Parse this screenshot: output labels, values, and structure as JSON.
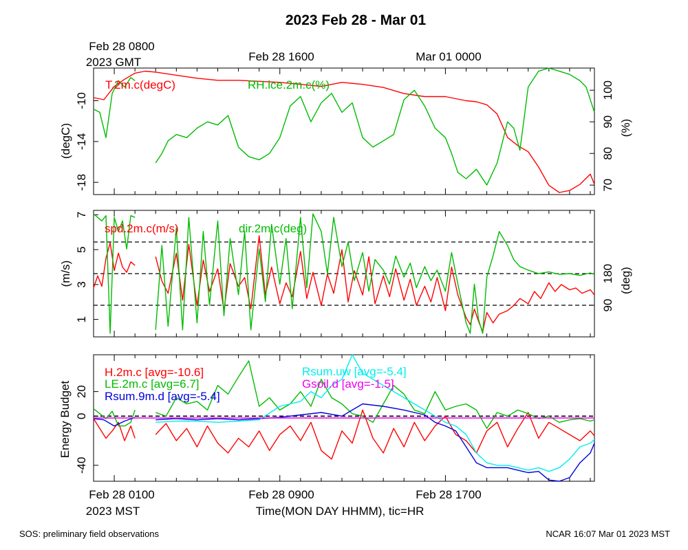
{
  "title": "2023 Feb 28 - Mar 01",
  "top_gmt_labels": {
    "first_line1": "Feb 28 0800",
    "first_line2": "2023 GMT",
    "second": "Feb 28 1600",
    "third": "Mar 01 0000"
  },
  "bottom_mst_labels": {
    "first_line1": "Feb 28 0100",
    "first_line2": "2023 MST",
    "second": "Feb 28 0900",
    "third": "Feb 28 1700"
  },
  "xlabel": "Time(MON DAY HHMM), tic=HR",
  "footer_left": "SOS: preliminary field observations",
  "footer_right": "NCAR 16:07 Mar 01 2023 MST",
  "colors": {
    "red": "#ff0000",
    "green": "#00bb00",
    "blue": "#0000dd",
    "cyan": "#00eeee",
    "magenta": "#ee00ee"
  },
  "chart_data": [
    {
      "type": "line",
      "panel": "temperature-rh",
      "x_unit": "hours since Feb 28 0000 MST",
      "xlim": [
        0.0,
        24.2
      ],
      "ylabel_left": "(degC)",
      "ylabel_right": "(%)",
      "ylim_left": [
        -19.2,
        -6.8
      ],
      "ylim_right": [
        67,
        107
      ],
      "yticks_left": [
        -18,
        -14,
        -10
      ],
      "yticks_right": [
        70,
        80,
        90,
        100
      ],
      "series": [
        {
          "name": "T.2m.c(degC)",
          "color": "#ff0000",
          "axis": "left",
          "x": [
            0,
            0.5,
            1.0,
            1.5,
            2.0,
            2.5,
            3,
            4,
            5,
            6,
            7,
            8,
            9,
            10,
            11,
            12,
            13,
            14,
            15,
            16,
            17,
            17.5,
            18,
            18.5,
            19,
            19.5,
            20,
            20.5,
            21,
            21.5,
            22,
            22.5,
            23,
            23.5,
            24,
            24.2
          ],
          "values": [
            -9.7,
            -9.9,
            -8.6,
            -7.9,
            -7.3,
            -7.1,
            -7.2,
            -7.5,
            -7.8,
            -8.0,
            -8.0,
            -8.1,
            -8.2,
            -8.4,
            -8.6,
            -8.2,
            -8.4,
            -8.7,
            -9.3,
            -9.6,
            -9.6,
            -9.8,
            -10.0,
            -10.1,
            -10.4,
            -11.3,
            -13.6,
            -14.4,
            -15.0,
            -16.5,
            -18.3,
            -19.0,
            -18.8,
            -18.2,
            -17.2,
            -18.2
          ]
        },
        {
          "name": "RH.ice.2m.c(%)",
          "color": "#00bb00",
          "axis": "right",
          "x": [
            0,
            0.3,
            0.6,
            0.9,
            1.2,
            1.5,
            1.8,
            2.0,
            null,
            3.0,
            3.3,
            3.6,
            4.0,
            4.5,
            5.0,
            5.5,
            6.0,
            6.5,
            7.0,
            7.5,
            8.0,
            8.5,
            9.0,
            9.5,
            10.0,
            10.5,
            11.0,
            11.5,
            12.0,
            12.5,
            13.0,
            13.5,
            14.0,
            14.5,
            15.0,
            15.5,
            16.0,
            16.5,
            17.0,
            17.3,
            17.6,
            18.0,
            18.5,
            19.0,
            19.5,
            20.0,
            20.3,
            20.6,
            21.0,
            21.5,
            22.0,
            22.5,
            23.0,
            23.5,
            23.8,
            24.2
          ],
          "values": [
            94,
            93,
            85,
            99,
            103,
            101,
            104,
            103,
            null,
            77,
            80,
            84,
            86,
            85,
            88,
            90,
            89,
            92,
            82,
            79,
            78,
            80,
            85,
            95,
            98,
            90,
            96,
            99,
            93,
            96,
            85,
            82,
            84,
            86,
            97,
            100,
            95,
            88,
            85,
            80,
            74,
            72,
            75,
            70,
            77,
            90,
            88,
            81,
            101,
            106,
            107,
            106,
            105,
            103,
            101,
            93
          ]
        }
      ]
    },
    {
      "type": "line",
      "panel": "wind",
      "x_unit": "hours since Feb 28 0000 MST",
      "xlim": [
        0.0,
        24.2
      ],
      "ylabel_left": "(m/s)",
      "ylabel_right": "(deg)",
      "ylim_left": [
        0,
        7.25
      ],
      "ylim_right": [
        0,
        360
      ],
      "yticks_left": [
        1,
        3,
        5,
        7
      ],
      "yticks_right": [
        90,
        180
      ],
      "reference_lines_deg": [
        90,
        180,
        270
      ],
      "series": [
        {
          "name": "spd.2m.c(m/s)",
          "color": "#ff0000",
          "axis": "left",
          "x": [
            0,
            0.2,
            0.4,
            0.6,
            0.8,
            1.0,
            1.2,
            1.4,
            1.6,
            1.8,
            2.0,
            null,
            3.0,
            3.3,
            3.6,
            4.0,
            4.3,
            4.6,
            5.0,
            5.3,
            5.6,
            6.0,
            6.3,
            6.6,
            7.0,
            7.3,
            7.6,
            8.0,
            8.3,
            8.6,
            9.0,
            9.3,
            9.6,
            10.0,
            10.3,
            10.6,
            11.0,
            11.3,
            11.6,
            12.0,
            12.3,
            12.6,
            13.0,
            13.3,
            13.6,
            14.0,
            14.3,
            14.6,
            15.0,
            15.3,
            15.6,
            16.0,
            16.3,
            16.6,
            17.0,
            17.3,
            17.6,
            18.0,
            18.2,
            18.4,
            18.6,
            18.8,
            19.0,
            19.3,
            19.6,
            20.0,
            20.3,
            20.6,
            21.0,
            21.3,
            21.6,
            22.0,
            22.3,
            22.6,
            23.0,
            23.3,
            23.6,
            24.0,
            24.2
          ],
          "values": [
            2.8,
            3.5,
            2.9,
            4.5,
            5.4,
            3.8,
            4.8,
            4.0,
            3.7,
            4.3,
            4.1,
            null,
            4.6,
            3.2,
            2.5,
            4.8,
            2.1,
            5.3,
            1.8,
            4.4,
            2.6,
            3.9,
            1.5,
            4.2,
            2.9,
            3.4,
            1.6,
            5.8,
            2.4,
            4.0,
            1.9,
            3.1,
            2.3,
            4.9,
            2.2,
            3.7,
            1.8,
            3.6,
            2.5,
            5.0,
            2.0,
            3.8,
            2.4,
            4.6,
            1.9,
            3.5,
            2.3,
            3.9,
            2.1,
            3.3,
            1.8,
            2.9,
            2.0,
            3.4,
            1.5,
            4.0,
            2.4,
            1.1,
            0.7,
            1.6,
            0.9,
            0.3,
            1.4,
            0.8,
            1.3,
            1.5,
            1.8,
            2.2,
            1.9,
            2.6,
            2.2,
            3.1,
            2.6,
            3.0,
            2.7,
            2.8,
            2.5,
            2.7,
            2.4
          ]
        },
        {
          "name": "dir.2m.c(deg)",
          "color": "#00bb00",
          "axis": "right",
          "x": [
            0,
            0.2,
            0.4,
            0.6,
            0.8,
            1.0,
            1.2,
            1.4,
            1.6,
            1.8,
            2.0,
            null,
            3.0,
            3.3,
            3.6,
            4.0,
            4.3,
            4.6,
            5.0,
            5.3,
            5.6,
            6.0,
            6.3,
            6.6,
            7.0,
            7.3,
            7.6,
            8.0,
            8.3,
            8.6,
            9.0,
            9.3,
            9.6,
            10.0,
            10.3,
            10.6,
            11.0,
            11.3,
            11.6,
            12.0,
            12.3,
            12.6,
            13.0,
            13.3,
            13.6,
            14.0,
            14.3,
            14.6,
            15.0,
            15.3,
            15.6,
            16.0,
            16.3,
            16.6,
            17.0,
            17.3,
            17.6,
            18.0,
            18.2,
            18.4,
            18.6,
            18.8,
            19.0,
            19.3,
            19.6,
            20.0,
            20.3,
            20.6,
            21.0,
            21.5,
            22.0,
            22.5,
            23.0,
            23.5,
            24.0,
            24.2
          ],
          "values": [
            350,
            340,
            330,
            345,
            10,
            340,
            300,
            330,
            250,
            345,
            340,
            null,
            20,
            260,
            30,
            310,
            20,
            340,
            40,
            300,
            90,
            330,
            60,
            280,
            120,
            300,
            20,
            250,
            100,
            320,
            150,
            280,
            80,
            340,
            140,
            350,
            300,
            180,
            340,
            200,
            270,
            160,
            240,
            130,
            220,
            190,
            150,
            230,
            170,
            210,
            140,
            200,
            160,
            190,
            130,
            240,
            150,
            40,
            10,
            150,
            50,
            10,
            170,
            230,
            300,
            260,
            220,
            200,
            190,
            180,
            185,
            178,
            180,
            175,
            182,
            178
          ]
        }
      ]
    },
    {
      "type": "line",
      "panel": "energy-budget",
      "x_unit": "hours since Feb 28 0000 MST",
      "xlim": [
        0.0,
        24.2
      ],
      "ylabel_left": "Energy Budget",
      "ylim_left": [
        -53,
        50
      ],
      "yticks_left": [
        -40,
        0,
        20
      ],
      "reference_lines": [
        0
      ],
      "series": [
        {
          "name": "H.2m.c",
          "legend": "H.2m.c [avg=-10.6]",
          "color": "#ff0000",
          "x": [
            0,
            0.3,
            0.6,
            0.9,
            1.2,
            1.5,
            1.8,
            2.0,
            null,
            3.0,
            3.5,
            4.0,
            4.5,
            5.0,
            5.5,
            6.0,
            6.5,
            7.0,
            7.5,
            8.0,
            8.5,
            9.0,
            9.5,
            10.0,
            10.5,
            11.0,
            11.5,
            12.0,
            12.5,
            13.0,
            13.5,
            14.0,
            14.5,
            15.0,
            15.5,
            16.0,
            16.5,
            17.0,
            17.5,
            18.0,
            18.5,
            19.0,
            19.5,
            20.0,
            20.5,
            21.0,
            21.5,
            22.0,
            22.5,
            23.0,
            23.5,
            24.0,
            24.2
          ],
          "values": [
            -2,
            -10,
            -18,
            -12,
            -5,
            -20,
            -8,
            -18,
            null,
            -15,
            -6,
            -20,
            -10,
            -25,
            -8,
            -22,
            -30,
            -18,
            -25,
            -12,
            -28,
            -15,
            -8,
            -20,
            -5,
            -28,
            -35,
            -12,
            -22,
            5,
            -18,
            -30,
            -10,
            -25,
            -5,
            -20,
            -8,
            0,
            -15,
            -20,
            -30,
            -12,
            -5,
            -25,
            -10,
            3,
            -18,
            -5,
            -10,
            -15,
            -20,
            -12,
            -16
          ]
        },
        {
          "name": "LE.2m.c",
          "legend": "LE.2m.c [avg=6.7]",
          "color": "#00bb00",
          "x": [
            0,
            0.3,
            0.6,
            0.9,
            1.2,
            1.5,
            1.8,
            2.0,
            null,
            3.0,
            3.5,
            4.0,
            4.5,
            5.0,
            5.5,
            6.0,
            6.5,
            7.0,
            7.5,
            8.0,
            8.5,
            9.0,
            9.5,
            10.0,
            10.5,
            11.0,
            11.5,
            12.0,
            12.5,
            13.0,
            13.5,
            14.0,
            14.5,
            15.0,
            15.5,
            16.0,
            16.5,
            17.0,
            17.5,
            18.0,
            18.5,
            19.0,
            19.5,
            20.0,
            20.5,
            21.0,
            21.5,
            22.0,
            22.5,
            23.0,
            23.5,
            24.0,
            24.2
          ],
          "values": [
            6,
            2,
            -2,
            4,
            -8,
            -8,
            -5,
            5,
            null,
            3,
            0,
            15,
            10,
            12,
            5,
            25,
            18,
            32,
            45,
            8,
            15,
            5,
            10,
            20,
            8,
            30,
            15,
            10,
            2,
            0,
            -5,
            10,
            25,
            18,
            5,
            2,
            20,
            5,
            8,
            10,
            5,
            -10,
            3,
            0,
            5,
            2,
            -2,
            0,
            -5,
            -3,
            -2,
            -4,
            -3
          ]
        },
        {
          "name": "Rsum.9m.d",
          "legend": "Rsum.9m.d [avg=-5.4]",
          "color": "#0000dd",
          "x": [
            0,
            0.5,
            1.0,
            1.5,
            2.0,
            null,
            3.0,
            4.0,
            5.0,
            6.0,
            7.0,
            8.0,
            9.0,
            10.0,
            11.0,
            12.0,
            12.5,
            13.0,
            14.0,
            15.0,
            16.0,
            16.5,
            17.0,
            17.5,
            18.0,
            18.5,
            19.0,
            19.5,
            20.0,
            20.5,
            21.0,
            21.5,
            22.0,
            22.5,
            23.0,
            23.5,
            24.0,
            24.2
          ],
          "values": [
            -2,
            -3,
            -8,
            -4,
            -1,
            null,
            -3,
            -2,
            -3,
            -2,
            -3,
            -2,
            -1,
            1,
            3,
            0,
            5,
            10,
            8,
            5,
            1,
            -5,
            -8,
            -12,
            -25,
            -38,
            -42,
            -42,
            -42,
            -44,
            -46,
            -45,
            -52,
            -55,
            -50,
            -38,
            -30,
            -22
          ]
        },
        {
          "name": "Rsum.uw",
          "legend": "Rsum.uw [avg=-5.4]",
          "color": "#00eeee",
          "x": [
            3.0,
            4.0,
            5.0,
            6.0,
            7.0,
            8.0,
            9.0,
            10.0,
            10.5,
            11.0,
            11.5,
            12.0,
            12.5,
            13.0,
            14.0,
            15.0,
            16.0,
            16.5,
            17.0,
            17.5,
            18.0,
            18.5,
            19.0,
            19.5,
            20.0,
            20.5,
            21.0,
            21.5,
            22.0,
            22.5,
            23.0,
            23.5,
            24.0,
            24.2
          ],
          "values": [
            -5,
            -4,
            -4,
            -5,
            -4,
            -3,
            8,
            12,
            20,
            15,
            25,
            30,
            50,
            35,
            25,
            15,
            5,
            0,
            -5,
            -8,
            -15,
            -30,
            -38,
            -40,
            -40,
            -42,
            -44,
            -42,
            -45,
            -42,
            -35,
            -25,
            -22,
            -19
          ]
        },
        {
          "name": "Gsoil.d",
          "legend": "Gsoil.d [avg=-1.5]",
          "color": "#ee00ee",
          "x": [
            0,
            24.2
          ],
          "values": [
            -1.5,
            -1.5
          ]
        }
      ]
    }
  ]
}
